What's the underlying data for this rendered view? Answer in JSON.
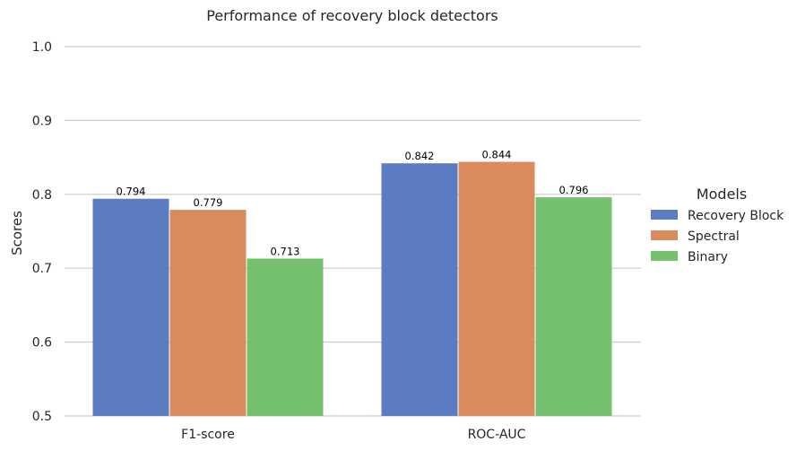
{
  "chart_data": {
    "type": "bar",
    "title": "Performance of recovery block detectors",
    "xlabel": "",
    "ylabel": "Scores",
    "categories": [
      "F1-score",
      "ROC-AUC"
    ],
    "series": [
      {
        "name": "Recovery Block",
        "values": [
          0.794,
          0.842
        ],
        "color": "#5b7cc1"
      },
      {
        "name": "Spectral",
        "values": [
          0.779,
          0.844
        ],
        "color": "#d98b5d"
      },
      {
        "name": "Binary",
        "values": [
          0.713,
          0.796
        ],
        "color": "#75c06e"
      }
    ],
    "value_labels": [
      [
        "0.794",
        "0.842"
      ],
      [
        "0.779",
        "0.844"
      ],
      [
        "0.713",
        "0.796"
      ]
    ],
    "ylim": [
      0.5,
      1.0
    ],
    "yticks": [
      0.5,
      0.6,
      0.7,
      0.8,
      0.9,
      1.0
    ],
    "ytick_labels": [
      "0.5",
      "0.6",
      "0.7",
      "0.8",
      "0.9",
      "1.0"
    ],
    "grid": true,
    "legend": {
      "title": "Models",
      "placement": "right"
    }
  }
}
